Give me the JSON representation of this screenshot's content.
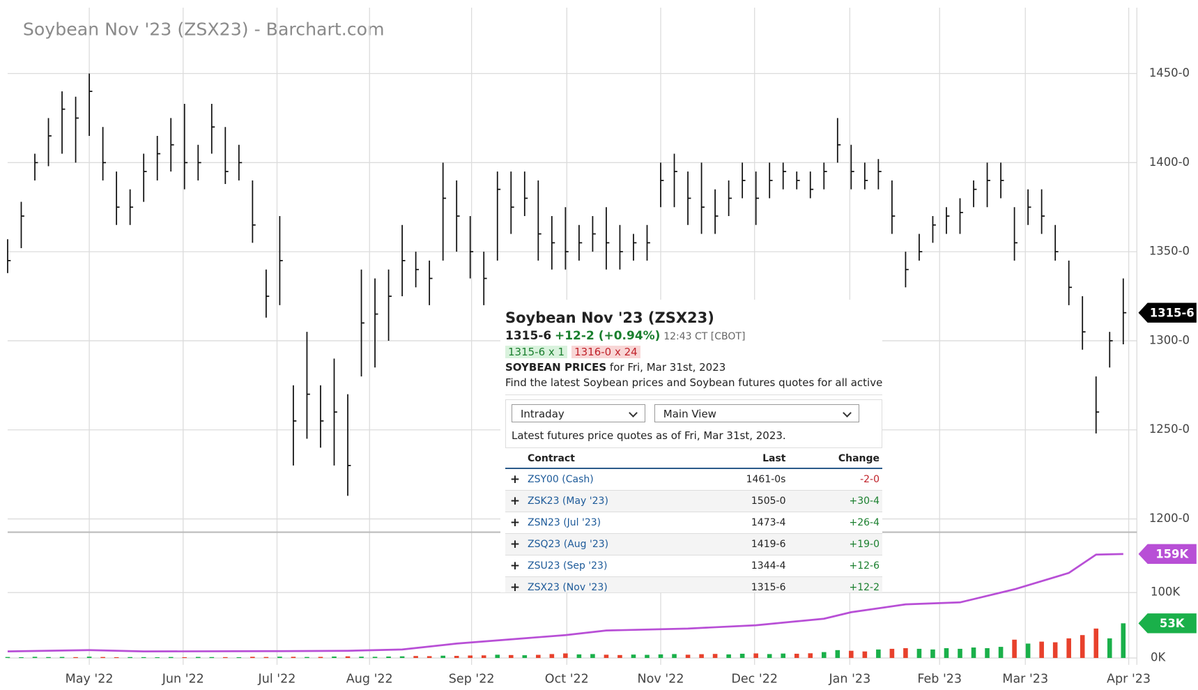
{
  "chart_data": {
    "type": "ohlc",
    "title": "Soybean Nov '23 (ZSX23) - Barchart.com",
    "xlim": [
      0,
      83
    ],
    "xticks": [
      {
        "value": 6.0,
        "label": "May '22"
      },
      {
        "value": 12.9,
        "label": "Jun '22"
      },
      {
        "value": 19.8,
        "label": "Jul '22"
      },
      {
        "value": 26.6,
        "label": "Aug '22"
      },
      {
        "value": 34.1,
        "label": "Sep '22"
      },
      {
        "value": 41.1,
        "label": "Oct '22"
      },
      {
        "value": 48.0,
        "label": "Nov '22"
      },
      {
        "value": 54.9,
        "label": "Dec '22"
      },
      {
        "value": 61.9,
        "label": "Jan '23"
      },
      {
        "value": 68.5,
        "label": "Feb '23"
      },
      {
        "value": 74.8,
        "label": "Mar '23"
      },
      {
        "value": 82.4,
        "label": "Apr '23"
      }
    ],
    "ylim": [
      1193,
      1487
    ],
    "yticks": [
      {
        "value": 1200,
        "label": "1200-0"
      },
      {
        "value": 1250,
        "label": "1250-0"
      },
      {
        "value": 1300,
        "label": "1300-0"
      },
      {
        "value": 1350,
        "label": "1350-0"
      },
      {
        "value": 1400,
        "label": "1400-0"
      },
      {
        "value": 1450,
        "label": "1450-0"
      }
    ],
    "y2lim": [
      0,
      190000
    ],
    "y2ticks": [
      {
        "value": 0,
        "label": "0K"
      },
      {
        "value": 100000,
        "label": "100K"
      }
    ],
    "grid": true,
    "color": "#111111",
    "bars": [
      {
        "low": 1338,
        "high": 1357,
        "close": 1345
      },
      {
        "low": 1352,
        "high": 1378,
        "close": 1370
      },
      {
        "low": 1390,
        "high": 1405,
        "close": 1400
      },
      {
        "low": 1398,
        "high": 1425,
        "close": 1415
      },
      {
        "low": 1405,
        "high": 1440,
        "close": 1430
      },
      {
        "low": 1400,
        "high": 1437,
        "close": 1425
      },
      {
        "low": 1415,
        "high": 1450,
        "close": 1440
      },
      {
        "low": 1390,
        "high": 1420,
        "close": 1400
      },
      {
        "low": 1365,
        "high": 1395,
        "close": 1375
      },
      {
        "low": 1365,
        "high": 1385,
        "close": 1375
      },
      {
        "low": 1378,
        "high": 1405,
        "close": 1395
      },
      {
        "low": 1390,
        "high": 1415,
        "close": 1405
      },
      {
        "low": 1395,
        "high": 1425,
        "close": 1410
      },
      {
        "low": 1385,
        "high": 1433,
        "close": 1400
      },
      {
        "low": 1390,
        "high": 1410,
        "close": 1400
      },
      {
        "low": 1405,
        "high": 1433,
        "close": 1420
      },
      {
        "low": 1388,
        "high": 1420,
        "close": 1395
      },
      {
        "low": 1390,
        "high": 1410,
        "close": 1400
      },
      {
        "low": 1355,
        "high": 1390,
        "close": 1365
      },
      {
        "low": 1313,
        "high": 1340,
        "close": 1325
      },
      {
        "low": 1320,
        "high": 1370,
        "close": 1345
      },
      {
        "low": 1230,
        "high": 1275,
        "close": 1255
      },
      {
        "low": 1245,
        "high": 1305,
        "close": 1270
      },
      {
        "low": 1240,
        "high": 1275,
        "close": 1255
      },
      {
        "low": 1230,
        "high": 1290,
        "close": 1260
      },
      {
        "low": 1213,
        "high": 1270,
        "close": 1230
      },
      {
        "low": 1280,
        "high": 1340,
        "close": 1310
      },
      {
        "low": 1285,
        "high": 1335,
        "close": 1315
      },
      {
        "low": 1300,
        "high": 1340,
        "close": 1325
      },
      {
        "low": 1325,
        "high": 1365,
        "close": 1345
      },
      {
        "low": 1330,
        "high": 1350,
        "close": 1340
      },
      {
        "low": 1320,
        "high": 1345,
        "close": 1335
      },
      {
        "low": 1345,
        "high": 1400,
        "close": 1380
      },
      {
        "low": 1350,
        "high": 1390,
        "close": 1370
      },
      {
        "low": 1335,
        "high": 1370,
        "close": 1350
      },
      {
        "low": 1320,
        "high": 1350,
        "close": 1335
      },
      {
        "low": 1345,
        "high": 1395,
        "close": 1385
      },
      {
        "low": 1360,
        "high": 1395,
        "close": 1375
      },
      {
        "low": 1370,
        "high": 1395,
        "close": 1380
      },
      {
        "low": 1345,
        "high": 1390,
        "close": 1360
      },
      {
        "low": 1340,
        "high": 1370,
        "close": 1355
      },
      {
        "low": 1340,
        "high": 1375,
        "close": 1350
      },
      {
        "low": 1345,
        "high": 1365,
        "close": 1355
      },
      {
        "low": 1350,
        "high": 1370,
        "close": 1360
      },
      {
        "low": 1340,
        "high": 1375,
        "close": 1355
      },
      {
        "low": 1340,
        "high": 1365,
        "close": 1350
      },
      {
        "low": 1345,
        "high": 1360,
        "close": 1355
      },
      {
        "low": 1345,
        "high": 1365,
        "close": 1355
      },
      {
        "low": 1375,
        "high": 1400,
        "close": 1390
      },
      {
        "low": 1375,
        "high": 1405,
        "close": 1395
      },
      {
        "low": 1365,
        "high": 1395,
        "close": 1380
      },
      {
        "low": 1360,
        "high": 1400,
        "close": 1375
      },
      {
        "low": 1360,
        "high": 1385,
        "close": 1370
      },
      {
        "low": 1370,
        "high": 1390,
        "close": 1380
      },
      {
        "low": 1380,
        "high": 1400,
        "close": 1390
      },
      {
        "low": 1365,
        "high": 1395,
        "close": 1380
      },
      {
        "low": 1380,
        "high": 1400,
        "close": 1390
      },
      {
        "low": 1385,
        "high": 1400,
        "close": 1395
      },
      {
        "low": 1385,
        "high": 1395,
        "close": 1390
      },
      {
        "low": 1380,
        "high": 1395,
        "close": 1385
      },
      {
        "low": 1385,
        "high": 1400,
        "close": 1395
      },
      {
        "low": 1400,
        "high": 1425,
        "close": 1410
      },
      {
        "low": 1385,
        "high": 1410,
        "close": 1395
      },
      {
        "low": 1385,
        "high": 1400,
        "close": 1390
      },
      {
        "low": 1385,
        "high": 1402,
        "close": 1395
      },
      {
        "low": 1360,
        "high": 1390,
        "close": 1370
      },
      {
        "low": 1330,
        "high": 1350,
        "close": 1340
      },
      {
        "low": 1345,
        "high": 1360,
        "close": 1350
      },
      {
        "low": 1355,
        "high": 1370,
        "close": 1365
      },
      {
        "low": 1360,
        "high": 1375,
        "close": 1370
      },
      {
        "low": 1360,
        "high": 1380,
        "close": 1372
      },
      {
        "low": 1375,
        "high": 1390,
        "close": 1385
      },
      {
        "low": 1375,
        "high": 1400,
        "close": 1390
      },
      {
        "low": 1380,
        "high": 1400,
        "close": 1390
      },
      {
        "low": 1345,
        "high": 1375,
        "close": 1355
      },
      {
        "low": 1365,
        "high": 1385,
        "close": 1375
      },
      {
        "low": 1360,
        "high": 1385,
        "close": 1370
      },
      {
        "low": 1345,
        "high": 1365,
        "close": 1350
      },
      {
        "low": 1320,
        "high": 1345,
        "close": 1330
      },
      {
        "low": 1295,
        "high": 1325,
        "close": 1305
      },
      {
        "low": 1248,
        "high": 1280,
        "close": 1260
      },
      {
        "low": 1285,
        "high": 1305,
        "close": 1300
      },
      {
        "low": 1298,
        "high": 1335,
        "close": 1315.75
      }
    ],
    "last_price": {
      "value": 1315.75,
      "label": "1315-6"
    },
    "volume": {
      "up_color": "#1ab04a",
      "down_color": "#e8412c",
      "values": [
        1500,
        1200,
        1800,
        1400,
        1600,
        1300,
        2000,
        1500,
        1200,
        1400,
        1300,
        1100,
        1500,
        1200,
        1600,
        1400,
        1300,
        1200,
        1800,
        1500,
        2000,
        1800,
        1500,
        1700,
        2200,
        2500,
        2000,
        1800,
        2200,
        2500,
        3000,
        2800,
        3500,
        3200,
        3800,
        4000,
        5000,
        4500,
        4200,
        4800,
        6000,
        7000,
        5500,
        6000,
        5000,
        4500,
        5200,
        4800,
        5500,
        6000,
        5000,
        5800,
        6200,
        5500,
        6500,
        7000,
        6000,
        6800,
        6500,
        7200,
        9000,
        12000,
        11000,
        10000,
        13000,
        14000,
        15000,
        14000,
        13000,
        15000,
        14000,
        16000,
        15000,
        17000,
        28000,
        22000,
        25000,
        24000,
        30000,
        35000,
        45000,
        30000,
        53000
      ]
    },
    "volume_last": {
      "value": 53000,
      "label": "53K"
    },
    "open_interest": {
      "color": "#b84fd6",
      "x": [
        0,
        6,
        10,
        20,
        25,
        29,
        33,
        41,
        44,
        50,
        55,
        60,
        62,
        66,
        70,
        74,
        78,
        80,
        82
      ],
      "values": [
        10000,
        12000,
        10000,
        10500,
        11000,
        13000,
        22000,
        35000,
        42000,
        45000,
        50000,
        60000,
        70000,
        82000,
        85000,
        105000,
        130000,
        158000,
        159000
      ]
    },
    "open_interest_last": {
      "value": 159000,
      "label": "159K"
    }
  },
  "panel": {
    "title": "Soybean Nov '23 (ZSX23)",
    "price": "1315-6",
    "change": "+12-2 (+0.94%)",
    "time": "12:43 CT [CBOT]",
    "bid": "1315-6 x 1",
    "ask": "1316-0 x 24",
    "heading": "SOYBEAN PRICES",
    "heading_date": "for Fri, Mar 31st, 2023",
    "description": "Find the latest Soybean prices and Soybean futures quotes for all active contracts",
    "dropdowns": [
      "Intraday",
      "Main View"
    ],
    "note": "Latest futures price quotes as of Fri, Mar 31st, 2023.",
    "table": {
      "columns": [
        "Contract",
        "Last",
        "Change"
      ],
      "rows": [
        [
          "ZSY00 (Cash)",
          "1461-0s",
          "-2-0"
        ],
        [
          "ZSK23 (May '23)",
          "1505-0",
          "+30-4"
        ],
        [
          "ZSN23 (Jul '23)",
          "1473-4",
          "+26-4"
        ],
        [
          "ZSQ23 (Aug '23)",
          "1419-6",
          "+19-0"
        ],
        [
          "ZSU23 (Sep '23)",
          "1344-4",
          "+12-6"
        ],
        [
          "ZSX23 (Nov '23)",
          "1315-6",
          "+12-2"
        ]
      ]
    }
  }
}
